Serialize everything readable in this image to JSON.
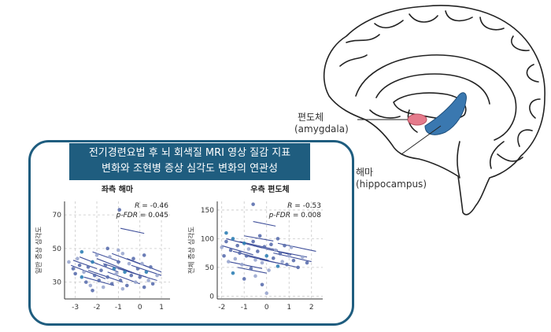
{
  "labels": {
    "amygdala_ko": "편도체",
    "amygdala_en": "(amygdala)",
    "hippocampus_ko": "해마",
    "hippocampus_en": "(hippocampus)"
  },
  "banner": {
    "line1": "전기경련요법 후 뇌 회색질 MRI 영상 질감 지표",
    "line2": "변화와 조현병 증상 심각도 변화의 연관성"
  },
  "colors": {
    "panel": "#1f5d7f",
    "amygdala": "#e57b8c",
    "hippocampus": "#3a78b0",
    "points": "#5b6fae",
    "points_light": "#9aa7cf"
  },
  "chart_data": [
    {
      "type": "scatter",
      "title": "좌측 해마",
      "ylabel": "일반 증상 심각도",
      "xlabel": "",
      "xticks": [
        -3,
        -2,
        -1,
        0,
        1
      ],
      "yticks": [
        30,
        50,
        70
      ],
      "xlim": [
        -3.5,
        1.4
      ],
      "ylim": [
        20,
        78
      ],
      "grid": true,
      "stats": {
        "r_label": "R",
        "r_value": "= -0.46",
        "p_label": "p-FDR",
        "p_value": "= 0.045"
      },
      "points": [
        [
          -3.3,
          42
        ],
        [
          -3.1,
          38
        ],
        [
          -3.0,
          35
        ],
        [
          -2.9,
          44
        ],
        [
          -2.8,
          40
        ],
        [
          -2.7,
          33
        ],
        [
          -2.6,
          36
        ],
        [
          -2.5,
          30
        ],
        [
          -2.4,
          39
        ],
        [
          -2.3,
          28
        ],
        [
          -2.2,
          42
        ],
        [
          -2.1,
          34
        ],
        [
          -2.0,
          46
        ],
        [
          -1.9,
          31
        ],
        [
          -1.8,
          37
        ],
        [
          -1.7,
          27
        ],
        [
          -1.6,
          40
        ],
        [
          -1.5,
          33
        ],
        [
          -1.4,
          45
        ],
        [
          -1.3,
          29
        ],
        [
          -1.2,
          38
        ],
        [
          -1.1,
          35
        ],
        [
          -1.0,
          42
        ],
        [
          -0.9,
          31
        ],
        [
          -0.8,
          47
        ],
        [
          -0.7,
          36
        ],
        [
          -0.6,
          28
        ],
        [
          -0.5,
          41
        ],
        [
          -0.4,
          34
        ],
        [
          -0.3,
          44
        ],
        [
          -0.2,
          30
        ],
        [
          -0.1,
          38
        ],
        [
          0.0,
          33
        ],
        [
          0.1,
          41
        ],
        [
          0.2,
          27
        ],
        [
          0.3,
          36
        ],
        [
          0.4,
          31
        ],
        [
          0.5,
          39
        ],
        [
          0.6,
          29
        ],
        [
          0.8,
          34
        ],
        [
          -2.7,
          48
        ],
        [
          -1.5,
          50
        ],
        [
          -0.8,
          26
        ],
        [
          -2.2,
          25
        ],
        [
          0.2,
          46
        ],
        [
          -1.0,
          49
        ],
        [
          -0.95,
          73
        ]
      ],
      "segments": [
        [
          -3.2,
          40,
          -1.6,
          32
        ],
        [
          -2.8,
          45,
          -1.0,
          36
        ],
        [
          -2.4,
          37,
          -0.8,
          30
        ],
        [
          -2.0,
          44,
          -0.2,
          35
        ],
        [
          -1.7,
          41,
          0.3,
          33
        ],
        [
          -1.3,
          47,
          0.6,
          38
        ],
        [
          -1.0,
          38,
          0.8,
          31
        ],
        [
          -0.6,
          44,
          1.0,
          36
        ],
        [
          -2.6,
          33,
          -1.2,
          28
        ],
        [
          -1.5,
          36,
          0.0,
          29
        ],
        [
          -0.9,
          62,
          0.2,
          59
        ],
        [
          -3.1,
          43,
          -2.0,
          38
        ],
        [
          -0.4,
          40,
          1.0,
          34
        ],
        [
          -2.2,
          48,
          -0.9,
          42
        ]
      ]
    },
    {
      "type": "scatter",
      "title": "우측 편도체",
      "ylabel": "전체 증상 심각도",
      "xlabel": "",
      "xticks": [
        -2,
        -1,
        0,
        1,
        2
      ],
      "yticks": [
        0,
        50,
        100,
        150
      ],
      "xlim": [
        -2.2,
        2.5
      ],
      "ylim": [
        -5,
        165
      ],
      "grid": true,
      "stats": {
        "r_label": "R",
        "r_value": "= -0.53",
        "p_label": "p-FDR",
        "p_value": "= 0.008"
      },
      "points": [
        [
          -2.0,
          85
        ],
        [
          -1.9,
          70
        ],
        [
          -1.8,
          95
        ],
        [
          -1.7,
          60
        ],
        [
          -1.6,
          80
        ],
        [
          -1.5,
          100
        ],
        [
          -1.4,
          65
        ],
        [
          -1.3,
          88
        ],
        [
          -1.2,
          75
        ],
        [
          -1.1,
          55
        ],
        [
          -1.0,
          92
        ],
        [
          -0.9,
          70
        ],
        [
          -0.8,
          82
        ],
        [
          -0.7,
          48
        ],
        [
          -0.6,
          95
        ],
        [
          -0.5,
          63
        ],
        [
          -0.4,
          78
        ],
        [
          -0.3,
          105
        ],
        [
          -0.2,
          58
        ],
        [
          -0.1,
          86
        ],
        [
          0.0,
          70
        ],
        [
          0.1,
          45
        ],
        [
          0.2,
          90
        ],
        [
          0.3,
          66
        ],
        [
          0.4,
          80
        ],
        [
          0.5,
          52
        ],
        [
          0.6,
          74
        ],
        [
          0.7,
          60
        ],
        [
          0.8,
          88
        ],
        [
          0.9,
          55
        ],
        [
          1.0,
          70
        ],
        [
          1.2,
          62
        ],
        [
          1.4,
          50
        ],
        [
          1.6,
          68
        ],
        [
          1.8,
          58
        ],
        [
          -1.5,
          40
        ],
        [
          -0.5,
          35
        ],
        [
          -0.2,
          20
        ],
        [
          -0.6,
          160
        ],
        [
          0.0,
          5
        ],
        [
          -1.8,
          110
        ],
        [
          0.5,
          100
        ],
        [
          1.1,
          85
        ],
        [
          -1.0,
          30
        ]
      ],
      "segments": [
        [
          -2.0,
          88,
          -0.6,
          72
        ],
        [
          -1.8,
          100,
          -0.2,
          84
        ],
        [
          -1.5,
          78,
          0.1,
          62
        ],
        [
          -1.2,
          95,
          0.5,
          80
        ],
        [
          -0.9,
          70,
          0.8,
          55
        ],
        [
          -0.6,
          88,
          1.1,
          72
        ],
        [
          -0.3,
          64,
          1.4,
          50
        ],
        [
          0.0,
          82,
          1.8,
          68
        ],
        [
          0.3,
          75,
          2.0,
          60
        ],
        [
          -1.7,
          60,
          -0.2,
          48
        ],
        [
          -0.6,
          130,
          0.4,
          122
        ],
        [
          -1.0,
          105,
          0.3,
          96
        ],
        [
          0.5,
          92,
          2.2,
          78
        ],
        [
          -1.3,
          50,
          0.0,
          40
        ]
      ]
    }
  ]
}
